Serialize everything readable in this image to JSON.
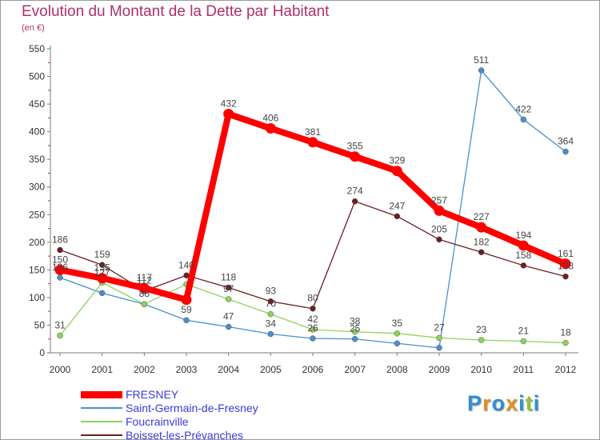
{
  "header": {
    "title": "Evolution du Montant de la Dette par Habitant",
    "subtitle": "(en €)"
  },
  "brand": {
    "letters": [
      "P",
      "r",
      "o",
      "x",
      "i",
      "t",
      "i"
    ],
    "colors": [
      "#2f8fd8",
      "#e2901e",
      "#2f8fd8",
      "#e2901e",
      "#2f8fd8",
      "#8fc23b",
      "#2f8fd8"
    ]
  },
  "chart_data": {
    "type": "line",
    "title": "Evolution du Montant de la Dette par Habitant",
    "subtitle": "(en €)",
    "categories": [
      "2000",
      "2001",
      "2002",
      "2003",
      "2004",
      "2005",
      "2006",
      "2007",
      "2008",
      "2009",
      "2010",
      "2011",
      "2012"
    ],
    "ylim": [
      0,
      550
    ],
    "yticks": [
      0,
      50,
      100,
      150,
      200,
      250,
      300,
      350,
      400,
      450,
      500,
      550
    ],
    "grid": false,
    "legend_position": "bottom-left",
    "series": [
      {
        "name": "FRESNEY",
        "color": "#ff0000",
        "values": [
          150,
          135,
          117,
          96,
          432,
          406,
          381,
          355,
          329,
          257,
          227,
          194,
          161
        ],
        "labels": [
          "150",
          "135",
          "117",
          "",
          "432",
          "406",
          "381",
          "355",
          "329",
          "257",
          "227",
          "194",
          "161"
        ]
      },
      {
        "name": "Saint-Germain-de-Fresney",
        "color": "#4a8fcc",
        "values": [
          136,
          108,
          88,
          59,
          47,
          34,
          26,
          25,
          17,
          9,
          511,
          422,
          364
        ],
        "labels": [
          "136",
          "",
          "88",
          "59",
          "47",
          "34",
          "26",
          "25",
          "",
          "",
          "511",
          "422",
          "364"
        ]
      },
      {
        "name": "Foucrainville",
        "color": "#8ed35a",
        "values": [
          31,
          127,
          88,
          124,
          97,
          70,
          42,
          38,
          35,
          27,
          23,
          21,
          18
        ],
        "labels": [
          "31",
          "127",
          "",
          "",
          "97",
          "70",
          "42",
          "38",
          "35",
          "27",
          "23",
          "21",
          "18"
        ]
      },
      {
        "name": "Boisset-les-Prévanches",
        "color": "#6b1f22",
        "values": [
          186,
          159,
          112,
          140,
          118,
          93,
          80,
          274,
          247,
          205,
          182,
          158,
          138
        ],
        "labels": [
          "186",
          "159",
          "112",
          "140",
          "118",
          "93",
          "80",
          "274",
          "247",
          "205",
          "182",
          "158",
          "138"
        ]
      }
    ]
  }
}
